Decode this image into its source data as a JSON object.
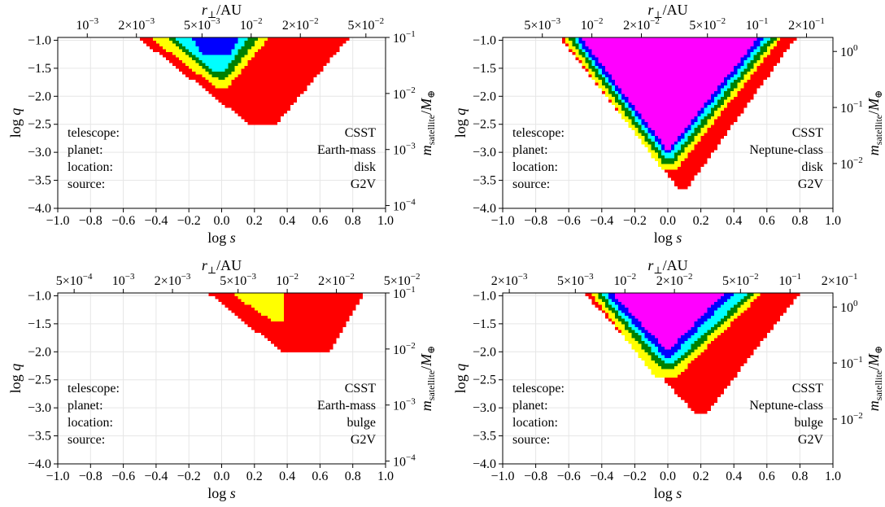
{
  "colors": {
    "red": "#ff0000",
    "yellow": "#ffff00",
    "green": "#008000",
    "cyan": "#00ffff",
    "blue": "#0000ff",
    "magenta": "#ff00ff",
    "grid": "#e6e6e6"
  },
  "chart_data": [
    {
      "type": "heatmap",
      "panel": "top-left",
      "xlabel": "log s",
      "ylabel": "log q",
      "top_xlabel": "r⊥/AU",
      "right_ylabel": "m_satellite/M⊕",
      "xlim": [
        -1.0,
        1.0
      ],
      "ylim": [
        -4.0,
        -0.95
      ],
      "x_ticks": [
        "−1.0",
        "−0.8",
        "−0.6",
        "−0.4",
        "−0.2",
        "0.0",
        "0.2",
        "0.4",
        "0.6",
        "0.8",
        "1.0"
      ],
      "y_ticks": [
        "−1.0",
        "−1.5",
        "−2.0",
        "−2.5",
        "−3.0",
        "−3.5",
        "−4.0"
      ],
      "top_ticks": [
        {
          "label": "10^-3",
          "logs": -0.82
        },
        {
          "label": "2×10^-3",
          "logs": -0.52
        },
        {
          "label": "5×10^-3",
          "logs": -0.12
        },
        {
          "label": "10^-2",
          "logs": 0.18
        },
        {
          "label": "2×10^-2",
          "logs": 0.48
        },
        {
          "label": "5×10^-2",
          "logs": 0.88
        }
      ],
      "right_ticks": [
        {
          "label": "10^-1",
          "logq": -0.95
        },
        {
          "label": "10^-2",
          "logq": -1.95
        },
        {
          "label": "10^-3",
          "logq": -2.95
        },
        {
          "label": "10^-4",
          "logq": -3.95
        }
      ],
      "legend_rows": [
        {
          "key": "telescope:",
          "value": "CSST"
        },
        {
          "key": "planet:",
          "value": "Earth-mass"
        },
        {
          "key": "location:",
          "value": "disk"
        },
        {
          "key": "source:",
          "value": "G2V"
        }
      ],
      "regions": [
        {
          "color": "red",
          "top": -0.95,
          "bottom": -2.45,
          "left_top": -0.5,
          "right_top": 0.77,
          "left_bottom": 0.16,
          "right_bottom": 0.34
        },
        {
          "color": "yellow",
          "top": -0.95,
          "bottom": -1.8,
          "left_top": -0.42,
          "right_top": 0.28,
          "left_bottom": -0.04,
          "right_bottom": 0.04
        },
        {
          "color": "green",
          "top": -0.95,
          "bottom": -1.65,
          "left_top": -0.33,
          "right_top": 0.22,
          "left_bottom": -0.03,
          "right_bottom": 0.03
        },
        {
          "color": "cyan",
          "top": -0.95,
          "bottom": -1.5,
          "left_top": -0.28,
          "right_top": 0.16,
          "left_bottom": -0.06,
          "right_bottom": 0.02
        },
        {
          "color": "blue",
          "top": -0.95,
          "bottom": -1.2,
          "left_top": -0.18,
          "right_top": 0.1,
          "left_bottom": -0.12,
          "right_bottom": 0.06
        }
      ]
    },
    {
      "type": "heatmap",
      "panel": "top-right",
      "xlabel": "log s",
      "ylabel": "log q",
      "top_xlabel": "r⊥/AU",
      "right_ylabel": "m_satellite/M⊕",
      "xlim": [
        -1.0,
        1.0
      ],
      "ylim": [
        -4.0,
        -0.95
      ],
      "x_ticks": [
        "−1.0",
        "−0.8",
        "−0.6",
        "−0.4",
        "−0.2",
        "0.0",
        "0.2",
        "0.4",
        "0.6",
        "0.8",
        "1.0"
      ],
      "y_ticks": [
        "−1.0",
        "−1.5",
        "−2.0",
        "−2.5",
        "−3.0",
        "−3.5",
        "−4.0"
      ],
      "top_ticks": [
        {
          "label": "5×10^-3",
          "logs": -0.76
        },
        {
          "label": "10^-2",
          "logs": -0.46
        },
        {
          "label": "2×10^-2",
          "logs": -0.16
        },
        {
          "label": "5×10^-2",
          "logs": 0.24
        },
        {
          "label": "10^-1",
          "logs": 0.54
        },
        {
          "label": "2×10^-1",
          "logs": 0.84
        }
      ],
      "right_ticks": [
        {
          "label": "10^0",
          "logq": -1.2
        },
        {
          "label": "10^-1",
          "logq": -2.2
        },
        {
          "label": "10^-2",
          "logq": -3.2
        }
      ],
      "legend_rows": [
        {
          "key": "telescope:",
          "value": "CSST"
        },
        {
          "key": "planet:",
          "value": "Neptune-class"
        },
        {
          "key": "location:",
          "value": "disk"
        },
        {
          "key": "source:",
          "value": "G2V"
        }
      ],
      "regions": [
        {
          "color": "red",
          "top": -0.95,
          "bottom": -3.6,
          "left_top": -0.65,
          "right_top": 0.77,
          "left_bottom": 0.06,
          "right_bottom": 0.12
        },
        {
          "color": "yellow",
          "top": -0.95,
          "bottom": -3.25,
          "left_top": -0.63,
          "right_top": 0.68,
          "left_bottom": -0.04,
          "right_bottom": 0.06
        },
        {
          "color": "green",
          "top": -0.95,
          "bottom": -3.15,
          "left_top": -0.6,
          "right_top": 0.65,
          "left_bottom": -0.03,
          "right_bottom": 0.04
        },
        {
          "color": "cyan",
          "top": -0.95,
          "bottom": -3.05,
          "left_top": -0.57,
          "right_top": 0.61,
          "left_bottom": -0.02,
          "right_bottom": 0.03
        },
        {
          "color": "blue",
          "top": -0.95,
          "bottom": -2.95,
          "left_top": -0.55,
          "right_top": 0.58,
          "left_bottom": -0.02,
          "right_bottom": 0.02
        },
        {
          "color": "magenta",
          "top": -0.95,
          "bottom": -2.9,
          "left_top": -0.52,
          "right_top": 0.54,
          "left_bottom": -0.01,
          "right_bottom": 0.01
        }
      ]
    },
    {
      "type": "heatmap",
      "panel": "bottom-left",
      "xlabel": "log s",
      "ylabel": "log q",
      "top_xlabel": "r⊥/AU",
      "right_ylabel": "m_satellite/M⊕",
      "xlim": [
        -1.0,
        1.0
      ],
      "ylim": [
        -4.0,
        -0.95
      ],
      "x_ticks": [
        "−1.0",
        "−0.8",
        "−0.6",
        "−0.4",
        "−0.2",
        "0.0",
        "0.2",
        "0.4",
        "0.6",
        "0.8",
        "1.0"
      ],
      "y_ticks": [
        "−1.0",
        "−1.5",
        "−2.0",
        "−2.5",
        "−3.0",
        "−3.5",
        "−4.0"
      ],
      "top_ticks": [
        {
          "label": "5×10^-4",
          "logs": -0.9
        },
        {
          "label": "10^-3",
          "logs": -0.6
        },
        {
          "label": "2×10^-3",
          "logs": -0.3
        },
        {
          "label": "5×10^-3",
          "logs": 0.1
        },
        {
          "label": "10^-2",
          "logs": 0.4
        },
        {
          "label": "2×10^-2",
          "logs": 0.7
        },
        {
          "label": "5×10^-2",
          "logs": 1.1
        }
      ],
      "right_ticks": [
        {
          "label": "10^-1",
          "logq": -0.95
        },
        {
          "label": "10^-2",
          "logq": -1.95
        },
        {
          "label": "10^-3",
          "logq": -2.95
        },
        {
          "label": "10^-4",
          "logq": -3.95
        }
      ],
      "legend_rows": [
        {
          "key": "telescope:",
          "value": "CSST"
        },
        {
          "key": "planet:",
          "value": "Earth-mass"
        },
        {
          "key": "location:",
          "value": "bulge"
        },
        {
          "key": "source:",
          "value": "G2V"
        }
      ],
      "regions": [
        {
          "color": "red",
          "top": -0.95,
          "bottom": -1.95,
          "left_top": -0.07,
          "right_top": 0.86,
          "left_bottom": 0.36,
          "right_bottom": 0.67
        },
        {
          "color": "yellow",
          "top": -0.95,
          "bottom": -1.4,
          "left_top": 0.07,
          "right_top": 0.38,
          "left_bottom": 0.3,
          "right_bottom": 0.38
        }
      ]
    },
    {
      "type": "heatmap",
      "panel": "bottom-right",
      "xlabel": "log s",
      "ylabel": "log q",
      "top_xlabel": "r⊥/AU",
      "right_ylabel": "m_satellite/M⊕",
      "xlim": [
        -1.0,
        1.0
      ],
      "ylim": [
        -4.0,
        -0.95
      ],
      "x_ticks": [
        "−1.0",
        "−0.8",
        "−0.6",
        "−0.4",
        "−0.2",
        "0.0",
        "0.2",
        "0.4",
        "0.6",
        "0.8",
        "1.0"
      ],
      "y_ticks": [
        "−1.0",
        "−1.5",
        "−2.0",
        "−2.5",
        "−3.0",
        "−3.5",
        "−4.0"
      ],
      "top_ticks": [
        {
          "label": "2×10^-3",
          "logs": -0.96
        },
        {
          "label": "5×10^-3",
          "logs": -0.56
        },
        {
          "label": "10^-2",
          "logs": -0.26
        },
        {
          "label": "2×10^-2",
          "logs": 0.04
        },
        {
          "label": "5×10^-2",
          "logs": 0.44
        },
        {
          "label": "10^-1",
          "logs": 0.74
        },
        {
          "label": "2×10^-1",
          "logs": 1.04
        }
      ],
      "right_ticks": [
        {
          "label": "10^0",
          "logq": -1.2
        },
        {
          "label": "10^-1",
          "logq": -2.2
        },
        {
          "label": "10^-2",
          "logq": -3.2
        }
      ],
      "legend_rows": [
        {
          "key": "telescope:",
          "value": "CSST"
        },
        {
          "key": "planet:",
          "value": "Neptune-class"
        },
        {
          "key": "location:",
          "value": "bulge"
        },
        {
          "key": "source:",
          "value": "G2V"
        }
      ],
      "regions": [
        {
          "color": "red",
          "top": -0.95,
          "bottom": -3.05,
          "left_top": -0.5,
          "right_top": 0.79,
          "left_bottom": 0.16,
          "right_bottom": 0.24
        },
        {
          "color": "yellow",
          "top": -0.95,
          "bottom": -2.4,
          "left_top": -0.46,
          "right_top": 0.56,
          "left_bottom": -0.08,
          "right_bottom": 0.06
        },
        {
          "color": "green",
          "top": -0.95,
          "bottom": -2.25,
          "left_top": -0.43,
          "right_top": 0.52,
          "left_bottom": -0.05,
          "right_bottom": 0.05
        },
        {
          "color": "cyan",
          "top": -0.95,
          "bottom": -2.15,
          "left_top": -0.4,
          "right_top": 0.48,
          "left_bottom": -0.03,
          "right_bottom": 0.04
        },
        {
          "color": "blue",
          "top": -0.95,
          "bottom": -2.05,
          "left_top": -0.37,
          "right_top": 0.39,
          "left_bottom": -0.02,
          "right_bottom": 0.02
        },
        {
          "color": "magenta",
          "top": -0.95,
          "bottom": -1.9,
          "left_top": -0.33,
          "right_top": 0.33,
          "left_bottom": -0.02,
          "right_bottom": 0.02
        }
      ]
    }
  ]
}
